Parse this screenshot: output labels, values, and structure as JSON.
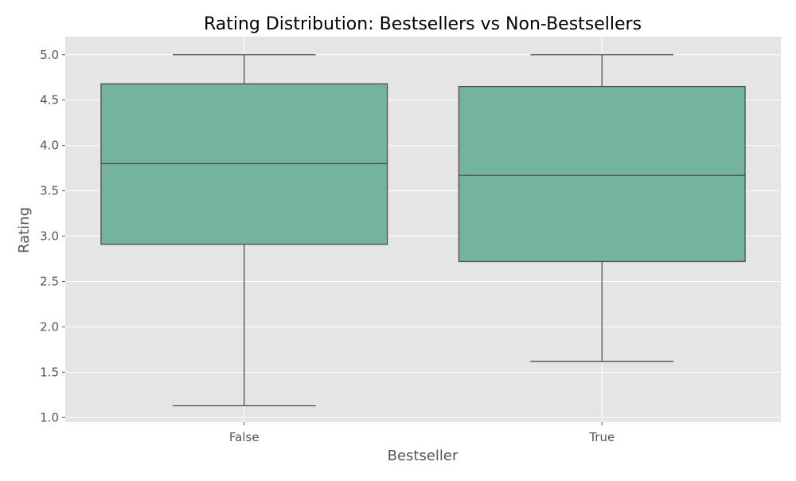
{
  "chart_data": {
    "type": "box",
    "title": "Rating Distribution: Bestsellers vs Non-Bestsellers",
    "xlabel": "Bestseller",
    "ylabel": "Rating",
    "categories": [
      "False",
      "True"
    ],
    "ylim": [
      0.95,
      5.2
    ],
    "y_ticks": [
      "1.0",
      "1.5",
      "2.0",
      "2.5",
      "3.0",
      "3.5",
      "4.0",
      "4.5",
      "5.0"
    ],
    "y_tick_values": [
      1.0,
      1.5,
      2.0,
      2.5,
      3.0,
      3.5,
      4.0,
      4.5,
      5.0
    ],
    "grid": true,
    "box_color": "#73b3a0",
    "edge_color": "#4d4d4d",
    "background_color": "#e5e5e5",
    "boxes": [
      {
        "category": "False",
        "whisker_low": 1.13,
        "q1": 2.91,
        "median": 3.8,
        "q3": 4.68,
        "whisker_high": 5.0
      },
      {
        "category": "True",
        "whisker_low": 1.62,
        "q1": 2.72,
        "median": 3.67,
        "q3": 4.65,
        "whisker_high": 5.0
      }
    ]
  }
}
